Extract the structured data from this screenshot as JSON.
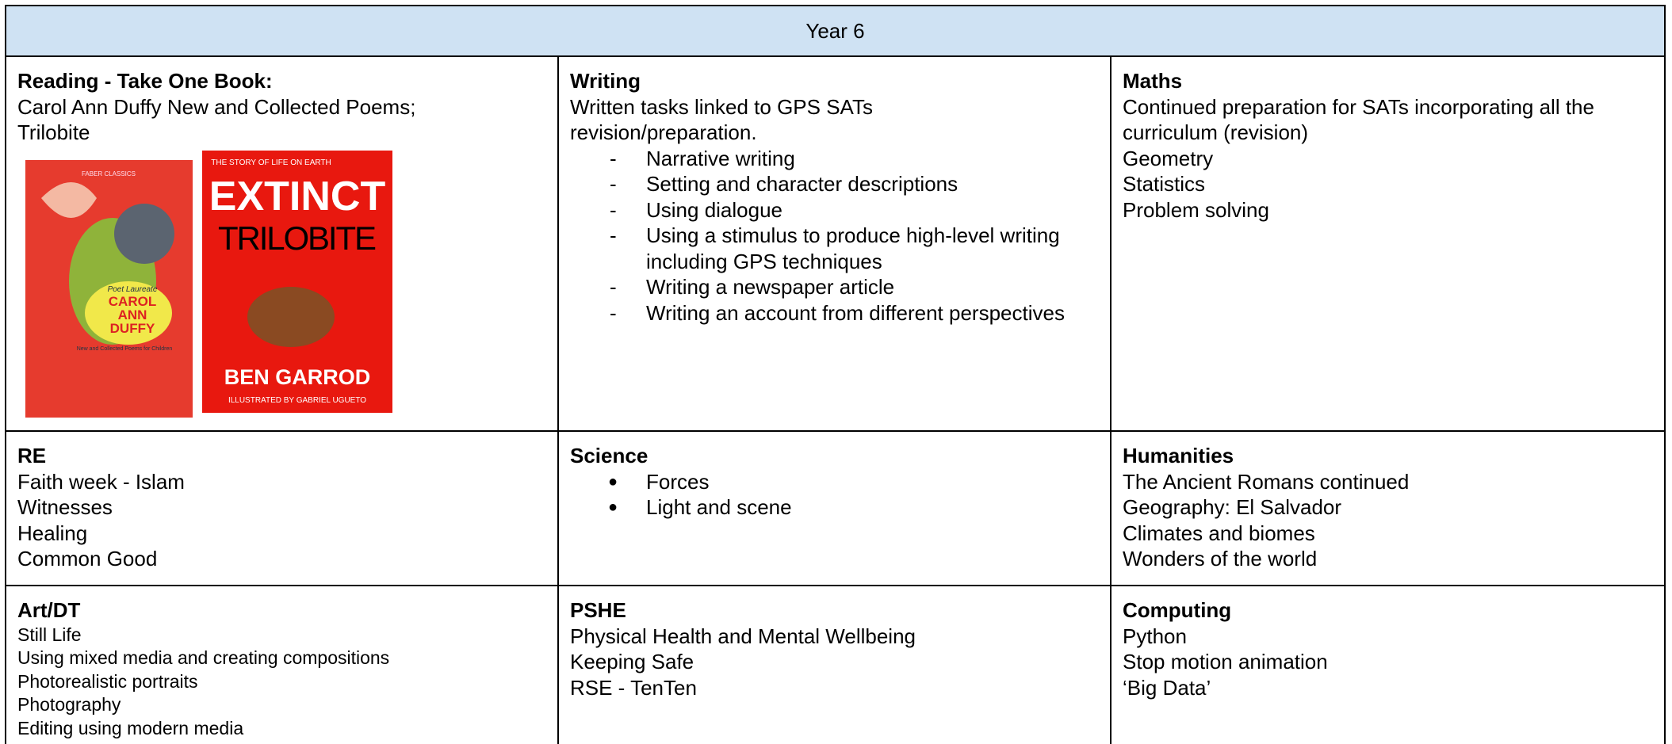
{
  "header": {
    "title": "Year 6"
  },
  "reading": {
    "title": "Reading - Take One Book:",
    "lines": [
      "Carol Ann Duffy New and Collected Poems;",
      "Trilobite"
    ],
    "cover1": {
      "publisher": "FABER CLASSICS",
      "tag": "Poet Laureate",
      "author": "CAROL ANN DUFFY",
      "subtitle": "New and Collected Poems for Children"
    },
    "cover2": {
      "series": "THE STORY OF LIFE ON EARTH",
      "title1": "EXTINCT",
      "title2": "TRILOBITE",
      "author": "BEN GARROD",
      "illustrator": "ILLUSTRATED BY GABRIEL UGUETO"
    }
  },
  "writing": {
    "title": "Writing",
    "lines": [
      "Written tasks linked to GPS SATs",
      "revision/preparation."
    ],
    "items": [
      "Narrative writing",
      "Setting and character descriptions",
      "Using dialogue",
      "Using a stimulus to produce high-level writing including GPS techniques",
      "Writing a newspaper article",
      "Writing an account from different perspectives"
    ]
  },
  "maths": {
    "title": "Maths",
    "lines": [
      "Continued preparation for SATs incorporating all the curriculum (revision)",
      "Geometry",
      "Statistics",
      "Problem solving"
    ]
  },
  "re": {
    "title": "RE",
    "lines": [
      "Faith week - Islam",
      "Witnesses",
      "Healing",
      "Common Good"
    ]
  },
  "science": {
    "title": "Science",
    "items": [
      "Forces",
      "Light and scene"
    ]
  },
  "humanities": {
    "title": "Humanities",
    "lines": [
      "The Ancient Romans continued",
      "Geography: El Salvador",
      "Climates and biomes",
      "Wonders of the world"
    ]
  },
  "art": {
    "title": "Art/DT",
    "lines": [
      "Still Life",
      "Using mixed media and creating compositions",
      "Photorealistic portraits",
      "Photography",
      "Editing using modern media"
    ]
  },
  "pshe": {
    "title": "PSHE",
    "lines": [
      "Physical Health and Mental Wellbeing",
      "Keeping Safe",
      "RSE - TenTen"
    ]
  },
  "computing": {
    "title": "Computing",
    "lines": [
      "Python",
      "Stop motion animation",
      "‘Big Data’"
    ]
  }
}
